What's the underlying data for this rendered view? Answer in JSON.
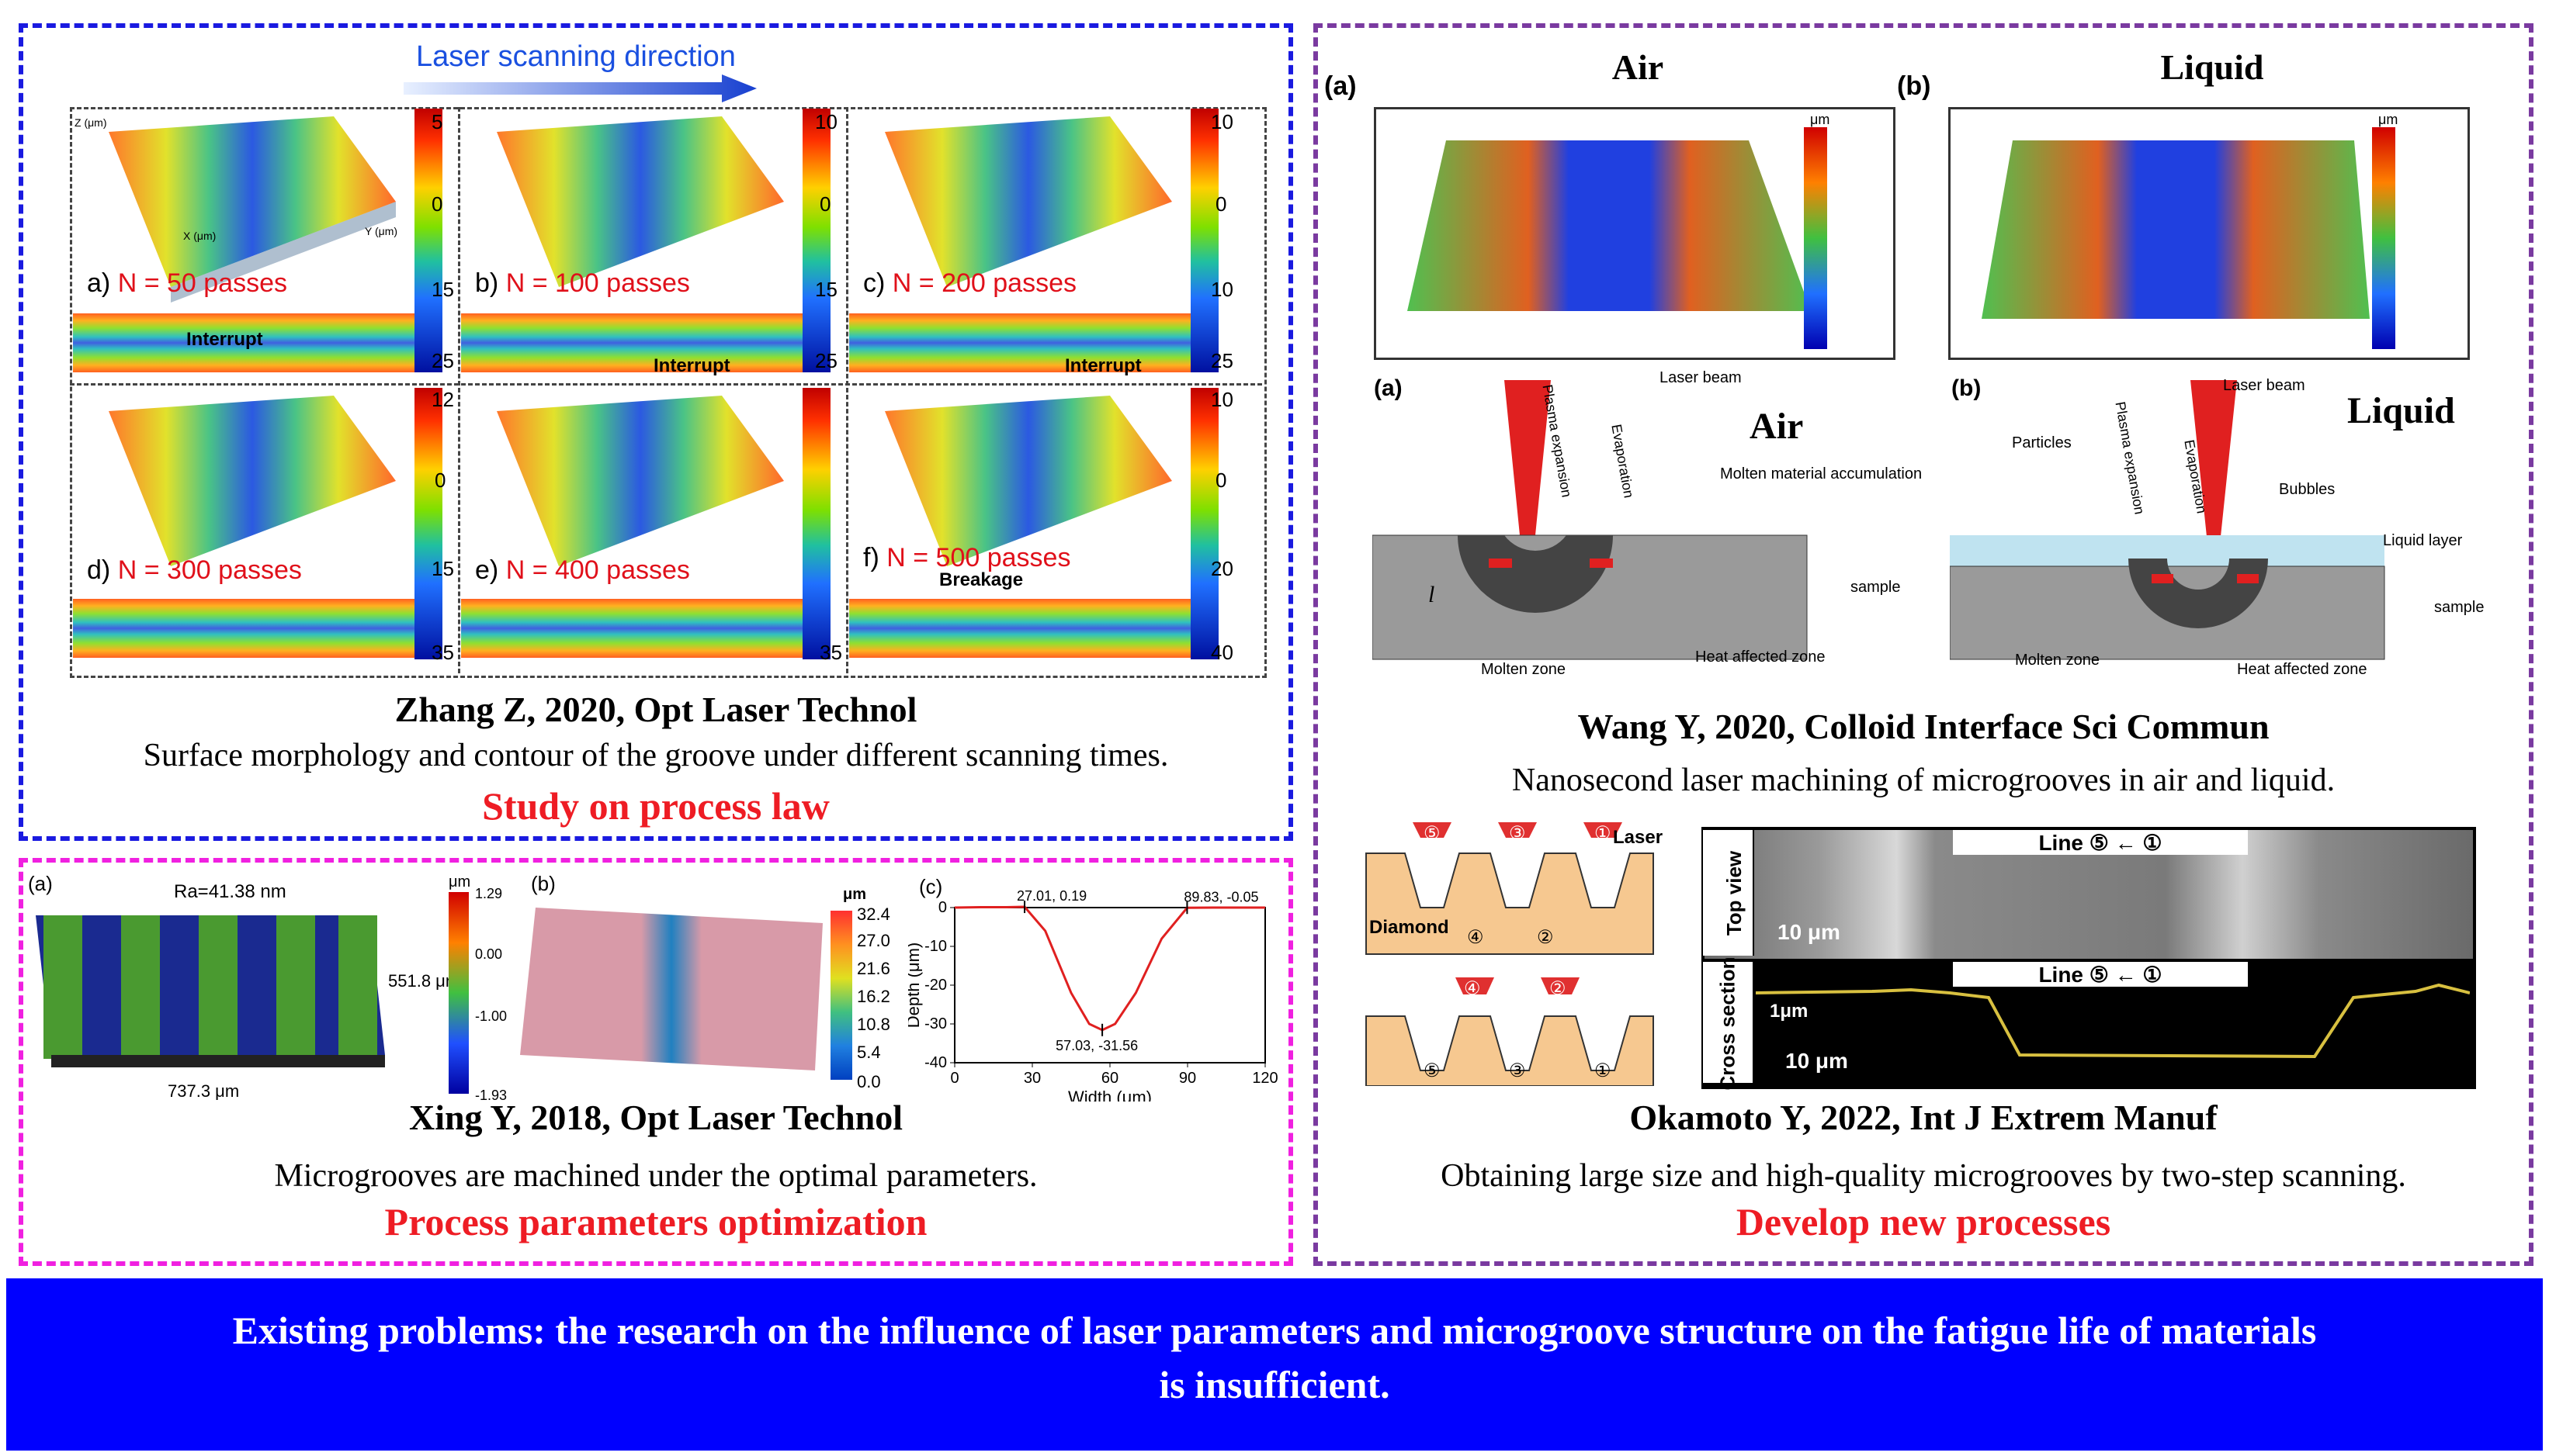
{
  "top_left": {
    "scan_direction_label": "Laser scanning direction",
    "panels": [
      {
        "label": "a)",
        "passes": "N = 50 passes",
        "strip_note": "Interrupt",
        "cbar_top": "5",
        "cbar_mid": "0",
        "cbar_low": "15",
        "cbar_bottom": "25"
      },
      {
        "label": "b)",
        "passes": "N = 100 passes",
        "strip_note": "Interrupt",
        "cbar_top": "10",
        "cbar_mid": "0",
        "cbar_low": "15",
        "cbar_bottom": "25"
      },
      {
        "label": "c)",
        "passes": "N = 200 passes",
        "strip_note": "Interrupt",
        "cbar_top": "10",
        "cbar_mid": "0",
        "cbar_low": "10",
        "cbar_bottom": "25"
      },
      {
        "label": "d)",
        "passes": "N = 300 passes",
        "strip_note": "",
        "cbar_top": "12",
        "cbar_mid": "0",
        "cbar_low": "15",
        "cbar_bottom": "35"
      },
      {
        "label": "e)",
        "passes": "N = 400 passes",
        "strip_note": "",
        "cbar_top": "",
        "cbar_mid": "",
        "cbar_low": "",
        "cbar_bottom": ""
      },
      {
        "label": "f)",
        "passes": "N = 500 passes",
        "strip_note": "Breakage",
        "cbar_top": "10",
        "cbar_mid": "0",
        "cbar_low": "20",
        "cbar_bottom": "40"
      }
    ],
    "e_cbar_bottom": "35",
    "axis_x": "X (μm)",
    "axis_y": "Y (μm)",
    "axis_z": "Z (μm)",
    "citation": "Zhang Z, 2020, Opt Laser Technol",
    "description": "Surface morphology and contour of the groove under different scanning times.",
    "category": "Study on process law"
  },
  "bottom_left": {
    "a_label": "(a)",
    "b_label": "(b)",
    "c_label": "(c)",
    "ra": "Ra=41.38 nm",
    "dim_width": "737.3 μm",
    "dim_height": "551.8 μm",
    "cbar_a_unit": "μm",
    "cbar_a_ticks": [
      "1.29",
      "0.00",
      "-1.00",
      "-1.93"
    ],
    "cbar_b_unit": "μm",
    "cbar_b_ticks": [
      "32.4",
      "27.0",
      "21.6",
      "16.2",
      "10.8",
      "5.4",
      "0.0"
    ],
    "chart_annotations": [
      "27.01, 0.19",
      "89.83, -0.05",
      "57.03, -31.56"
    ],
    "citation": "Xing Y, 2018, Opt Laser Technol",
    "description": "Microgrooves are machined under the optimal parameters.",
    "category": "Process parameters optimization"
  },
  "right": {
    "a_label": "(a)",
    "b_label": "(b)",
    "air_title": "Air",
    "liquid_title": "Liquid",
    "unit": "μm",
    "schematic": {
      "laser_beam": "Laser beam",
      "plasma": "Plasma expansion",
      "evaporation": "Evaporation",
      "molten_accum": "Molten material accumulation",
      "sample": "sample",
      "molten_zone": "Molten zone",
      "heat_zone": "Heat affected zone",
      "particles": "Particles",
      "bubbles": "Bubbles",
      "liquid_layer": "Liquid layer",
      "depth_symbol": "l",
      "air": "Air",
      "liquid": "Liquid"
    },
    "citation1": "Wang Y, 2020, Colloid Interface Sci Commun",
    "description1": "Nanosecond laser machining of microgrooves in air and liquid.",
    "two_step": {
      "laser": "Laser",
      "diamond": "Diamond",
      "top_nums": [
        "⑤",
        "③",
        "①"
      ],
      "top_bottom_nums": [
        "④",
        "②"
      ],
      "second_nums": [
        "④",
        "②"
      ],
      "second_bottom_nums": [
        "⑤",
        "③",
        "①"
      ],
      "line_label": "Line ⑤ ← ①",
      "top_view": "Top view",
      "cross_section": "Cross section",
      "scale": "10 μm",
      "vscale": "1μm"
    },
    "citation2": "Okamoto Y, 2022, Int J Extrem Manuf",
    "description2": "Obtaining large size and high-quality microgrooves by two-step scanning.",
    "category": "Develop new processes"
  },
  "chart_data": {
    "type": "line",
    "title": "",
    "xlabel": "Width (μm)",
    "ylabel": "Depth (μm)",
    "xlim": [
      0,
      120
    ],
    "ylim": [
      -40,
      0
    ],
    "xticks": [
      "0",
      "30",
      "60",
      "90",
      "120"
    ],
    "yticks": [
      "0",
      "-10",
      "-20",
      "-30",
      "-40"
    ],
    "series": [
      {
        "name": "profile",
        "x": [
          0,
          10,
          20,
          27.01,
          35,
          45,
          52,
          57.03,
          62,
          70,
          80,
          89.83,
          100,
          110,
          120
        ],
        "y": [
          0,
          0.1,
          0.1,
          0.19,
          -6,
          -22,
          -30,
          -31.56,
          -30,
          -22,
          -8,
          -0.05,
          0,
          0,
          0
        ]
      }
    ]
  },
  "footer": {
    "line1": "Existing problems: the research on the influence of laser parameters and microgroove structure on the fatigue life of materials",
    "line2": "is insufficient."
  },
  "colors": {
    "blue_border": "#1a1ae0",
    "magenta_border": "#f020e0",
    "purple_border": "#7a3aa0",
    "red_text": "#ee1c24",
    "footer_bg": "#0000ff"
  }
}
